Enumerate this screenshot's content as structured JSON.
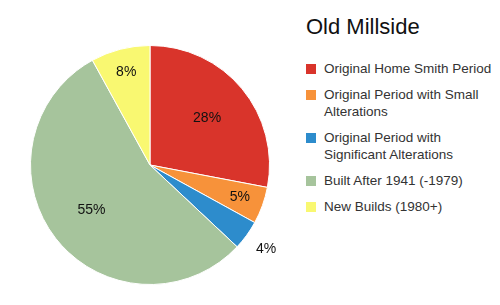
{
  "chart_data": {
    "type": "pie",
    "title": "Old Millside",
    "categories": [
      "Original Home Smith Period",
      "Original Period with Small Alterations",
      "Original Period with Significant Alterations",
      "Built After 1941 (-1979)",
      "New Builds (1980+)"
    ],
    "values": [
      28,
      5,
      4,
      55,
      8
    ],
    "value_labels": [
      "28%",
      "5%",
      "4%",
      "55%",
      "8%"
    ],
    "colors": [
      "#d9342b",
      "#f7923a",
      "#2d8ccc",
      "#a6c49c",
      "#f9f871"
    ],
    "legend": "right",
    "data_labels": true
  }
}
